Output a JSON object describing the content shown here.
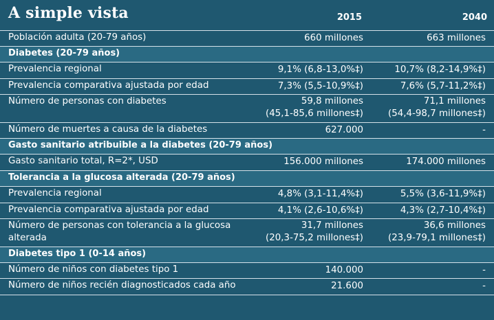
{
  "title": "A simple vista",
  "years": [
    "2015",
    "2040"
  ],
  "rows": [
    {
      "type": "data",
      "label": "Población adulta (20-79 años)",
      "v2015": [
        "660 millones"
      ],
      "v2040": [
        "663 millones"
      ],
      "h": "h23"
    },
    {
      "type": "section",
      "label": "Diabetes (20-79 años)"
    },
    {
      "type": "data",
      "label": "Prevalencia regional",
      "v2015": [
        "9,1% (6,8-13,0%‡)"
      ],
      "v2040": [
        "10,7% (8,2-14,9%‡)"
      ],
      "h": "h24"
    },
    {
      "type": "data",
      "label": "Prevalencia comparativa ajustada por edad",
      "v2015": [
        "7,3% (5,5-10,9%‡)"
      ],
      "v2040": [
        "7,6% (5,7-11,2%‡)"
      ],
      "h": "h23"
    },
    {
      "type": "data",
      "label": "Número de personas con diabetes",
      "v2015": [
        "59,8 millones",
        "(45,1-85,6 millones‡)"
      ],
      "v2040": [
        "71,1 millones",
        "(54,4-98,7 millones‡)"
      ],
      "h": "tall"
    },
    {
      "type": "data",
      "label": "Número de muertes a causa de la diabetes",
      "v2015": [
        "627.000"
      ],
      "v2040": [
        "-"
      ],
      "h": "h23"
    },
    {
      "type": "section",
      "label": "Gasto sanitario atribuible a la diabetes (20-79 años)"
    },
    {
      "type": "data",
      "label": "Gasto sanitario total, R=2*, USD",
      "v2015": [
        "156.000 millones"
      ],
      "v2040": [
        "174.000 millones"
      ],
      "h": "h24"
    },
    {
      "type": "section",
      "label": "Tolerancia a la glucosa alterada (20-79 años)"
    },
    {
      "type": "data",
      "label": "Prevalencia regional",
      "v2015": [
        "4,8% (3,1-11,4%‡)"
      ],
      "v2040": [
        "5,5% (3,6-11,9%‡)"
      ],
      "h": "h24"
    },
    {
      "type": "data",
      "label": "Prevalencia comparativa ajustada por edad",
      "v2015": [
        "4,1% (2,6-10,6%‡)"
      ],
      "v2040": [
        "4,3% (2,7-10,4%‡)"
      ],
      "h": "h23"
    },
    {
      "type": "data",
      "label": "Número de personas con tolerancia a la glucosa alterada",
      "v2015": [
        "31,7 millones",
        "(20,3-75,2 millones‡)"
      ],
      "v2040": [
        "36,6 millones",
        "(23,9-79,1 millones‡)"
      ],
      "h": "tall"
    },
    {
      "type": "section",
      "label": "Diabetes tipo 1 (0-14 años)"
    },
    {
      "type": "data",
      "label": "Número de niños con diabetes tipo 1",
      "v2015": [
        "140.000"
      ],
      "v2040": [
        "-"
      ],
      "h": "h23"
    },
    {
      "type": "data",
      "label": "Número de niños recién diagnosticados cada año",
      "v2015": [
        "21.600"
      ],
      "v2040": [
        "-"
      ],
      "h": "h24"
    }
  ],
  "colors": {
    "background": "#1f5870",
    "section_bg": "#2a6a83",
    "rule": "#d7e3ea",
    "text": "#ffffff"
  }
}
